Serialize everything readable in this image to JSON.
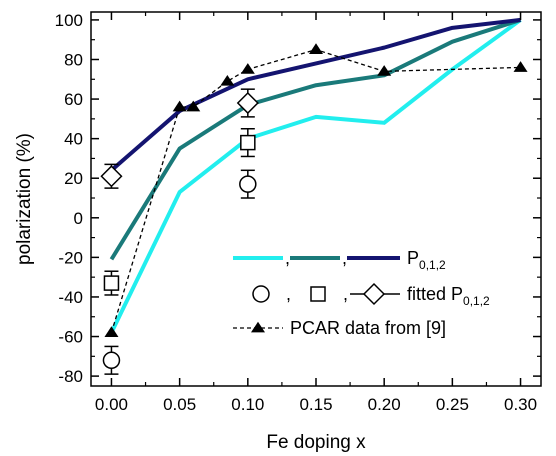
{
  "chart_data": {
    "type": "line",
    "xlabel": "Fe doping x",
    "ylabel": "polarization (%)",
    "xlim": [
      -0.015,
      0.315
    ],
    "ylim": [
      -85,
      104
    ],
    "x_ticks": [
      "0.00",
      "0.05",
      "0.10",
      "0.15",
      "0.20",
      "0.25",
      "0.30"
    ],
    "y_ticks": [
      "-80",
      "-60",
      "-40",
      "-20",
      "0",
      "20",
      "40",
      "60",
      "80",
      "100"
    ],
    "series": [
      {
        "key": "p0",
        "style": "line",
        "color": "#22eeee",
        "x": [
          0.0,
          0.05,
          0.1,
          0.15,
          0.2,
          0.25,
          0.3
        ],
        "y": [
          -58,
          13,
          40,
          51,
          48,
          75,
          100
        ]
      },
      {
        "key": "p1",
        "style": "line",
        "color": "#1a7a7a",
        "x": [
          0.0,
          0.05,
          0.1,
          0.15,
          0.2,
          0.25,
          0.3
        ],
        "y": [
          -21,
          35,
          57,
          67,
          72,
          89,
          100
        ]
      },
      {
        "key": "p2",
        "style": "line",
        "color": "#141470",
        "x": [
          0.0,
          0.05,
          0.1,
          0.15,
          0.2,
          0.25,
          0.3
        ],
        "y": [
          24,
          54,
          70,
          78,
          86,
          96,
          100
        ]
      },
      {
        "key": "pcar",
        "style": "dashed-triangle",
        "color": "#000000",
        "x": [
          0.0,
          0.05,
          0.06,
          0.085,
          0.1,
          0.15,
          0.2,
          0.3
        ],
        "y": [
          -58,
          56,
          56,
          69,
          75,
          85,
          74,
          76
        ]
      }
    ],
    "fitted": [
      {
        "marker": "circle",
        "points": [
          {
            "x": 0.0,
            "y": -72,
            "err": 7
          },
          {
            "x": 0.1,
            "y": 17,
            "err": 7
          }
        ]
      },
      {
        "marker": "square",
        "points": [
          {
            "x": 0.0,
            "y": -33,
            "err": 6
          },
          {
            "x": 0.1,
            "y": 38,
            "err": 7
          }
        ]
      },
      {
        "marker": "diamond",
        "points": [
          {
            "x": 0.0,
            "y": 21,
            "err": 6
          },
          {
            "x": 0.1,
            "y": 58,
            "err": 7
          }
        ]
      }
    ],
    "legend": {
      "position": "bottom-right",
      "line_entry": {
        "sep": ",",
        "label_main": "P",
        "label_sub": "0,1,2"
      },
      "fitted_entry": {
        "sep": ",",
        "label_main": "fitted P",
        "label_sub": "0,1,2"
      },
      "pcar_entry": {
        "label": "PCAR data from [9]"
      }
    }
  }
}
